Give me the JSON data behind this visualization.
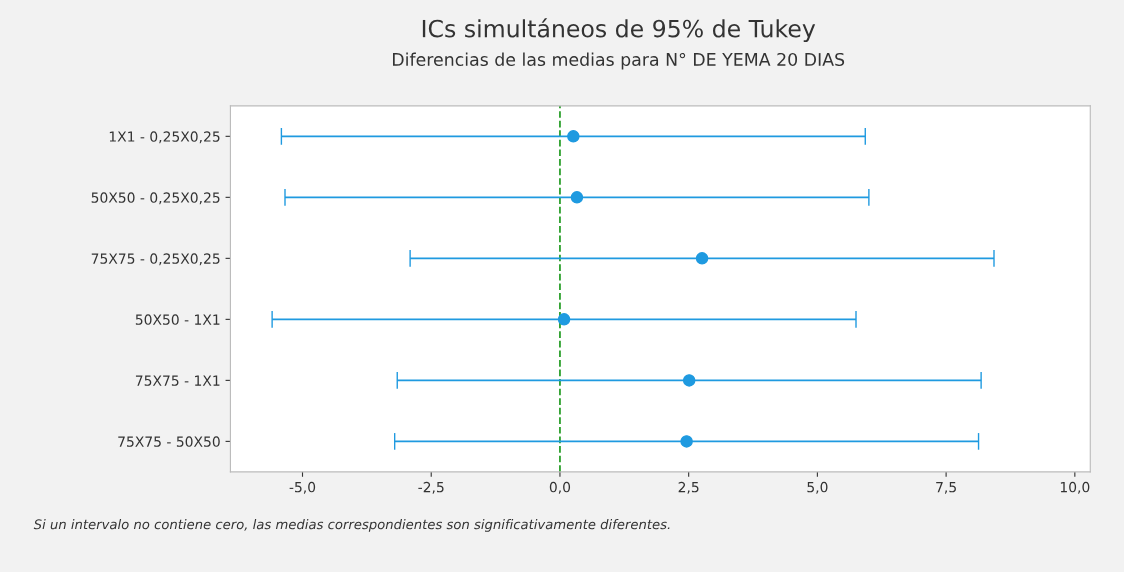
{
  "chart_data": {
    "type": "scatter",
    "orientation": "horizontal",
    "title": "ICs simultáneos de 95% de Tukey",
    "subtitle": "Diferencias de las medias para N° DE YEMA 20 DIAS",
    "categories": [
      "1X1 - 0,25X0,25",
      "50X50 - 0,25X0,25",
      "75X75 - 0,25X0,25",
      "50X50 - 1X1",
      "75X75 - 1X1",
      "75X75 - 50X50"
    ],
    "series": [
      {
        "color": "#1f9ae0",
        "values": [
          0.26,
          0.33,
          2.76,
          0.08,
          2.51,
          2.46
        ],
        "errors": [
          5.67,
          5.67,
          5.67,
          5.67,
          5.67,
          5.67
        ]
      }
    ],
    "xlim": [
      -6.4,
      10.3
    ],
    "xticks": [
      {
        "value": -5,
        "label": "-5,0"
      },
      {
        "value": -2.5,
        "label": "-2,5"
      },
      {
        "value": 0,
        "label": "0,0"
      },
      {
        "value": 2.5,
        "label": "2,5"
      },
      {
        "value": 5,
        "label": "5,0"
      },
      {
        "value": 7.5,
        "label": "7,5"
      },
      {
        "value": 10,
        "label": "10,0"
      }
    ],
    "marker": "circle",
    "grid": false,
    "legend": false,
    "ref_lines": [
      {
        "axis": "x",
        "value": 0,
        "color": "#2ca02c",
        "line_style": "dashed"
      }
    ],
    "annotations": [
      "Si un intervalo no contiene cero, las medias correspondientes son significativamente diferentes."
    ]
  }
}
